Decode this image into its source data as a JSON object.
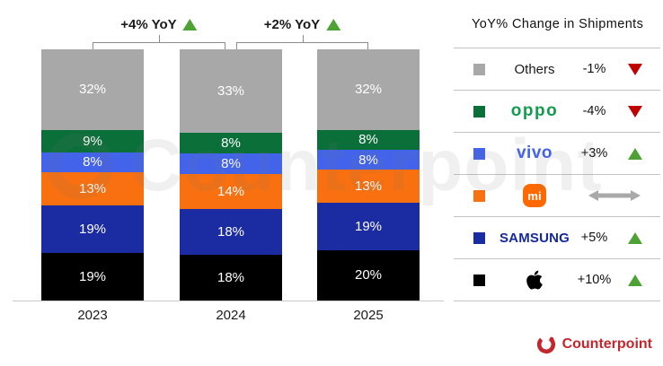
{
  "watermark": {
    "text": "Counterpoint"
  },
  "annotations": [
    {
      "label": "+4% YoY",
      "trend": "up",
      "from": "2023",
      "to": "2024"
    },
    {
      "label": "+2% YoY",
      "trend": "up",
      "from": "2024",
      "to": "2025"
    }
  ],
  "chart_data": {
    "type": "stacked-bar",
    "title": "",
    "categories": [
      "2023",
      "2024",
      "2025"
    ],
    "unit": "%",
    "ylim": [
      0,
      100
    ],
    "grid": false,
    "value_labels": "inside, white",
    "stack_order_bottom_to_top": [
      "Apple",
      "Samsung",
      "Xiaomi",
      "vivo",
      "OPPO",
      "Others"
    ],
    "series": [
      {
        "name": "Apple",
        "color": "#000000",
        "values": [
          19,
          18,
          20
        ]
      },
      {
        "name": "Samsung",
        "color": "#1b2ba1",
        "values": [
          19,
          18,
          19
        ]
      },
      {
        "name": "Xiaomi",
        "color": "#f8700f",
        "values": [
          13,
          14,
          13
        ]
      },
      {
        "name": "vivo",
        "color": "#4263ea",
        "values": [
          8,
          8,
          8
        ]
      },
      {
        "name": "OPPO",
        "color": "#0b6f39",
        "values": [
          9,
          8,
          8
        ]
      },
      {
        "name": "Others",
        "color": "#a8a8a8",
        "values": [
          32,
          33,
          32
        ]
      }
    ],
    "growth_annotations": [
      {
        "between": [
          "2023",
          "2024"
        ],
        "value": "+4% YoY"
      },
      {
        "between": [
          "2024",
          "2025"
        ],
        "value": "+2% YoY"
      }
    ]
  },
  "legend": {
    "title": "YoY% Change in Shipments",
    "rows": [
      {
        "id": "others",
        "brand": "Others",
        "swatch": "#a8a8a8",
        "logo_text": "Others",
        "logo_color": "#1a1a1a",
        "change": "-1%",
        "trend": "down"
      },
      {
        "id": "oppo",
        "brand": "OPPO",
        "swatch": "#0b6f39",
        "logo_text": "oppo",
        "logo_color": "#129c4d",
        "change": "-4%",
        "trend": "down"
      },
      {
        "id": "vivo",
        "brand": "vivo",
        "swatch": "#4263ea",
        "logo_text": "vivo",
        "logo_color": "#4161f2",
        "change": "+3%",
        "trend": "up"
      },
      {
        "id": "xiaomi",
        "brand": "Xiaomi",
        "swatch": "#f8700f",
        "logo_text": "mi",
        "logo_color": "#ff6900",
        "change": "",
        "trend": "flat"
      },
      {
        "id": "samsung",
        "brand": "Samsung",
        "swatch": "#1b2ba1",
        "logo_text": "SAMSUNG",
        "logo_color": "#1428a0",
        "change": "+5%",
        "trend": "up"
      },
      {
        "id": "apple",
        "brand": "Apple",
        "swatch": "#000000",
        "logo_text": "",
        "logo_color": "#000000",
        "change": "+10%",
        "trend": "up"
      }
    ]
  },
  "colors": {
    "up_triangle": "#4ca233",
    "down_triangle": "#c00000",
    "flat_arrow": "#a9a9a9",
    "bracket": "#8c8c8c",
    "counterpoint_red": "#c4262d"
  },
  "footer": {
    "brand": "Counterpoint"
  }
}
